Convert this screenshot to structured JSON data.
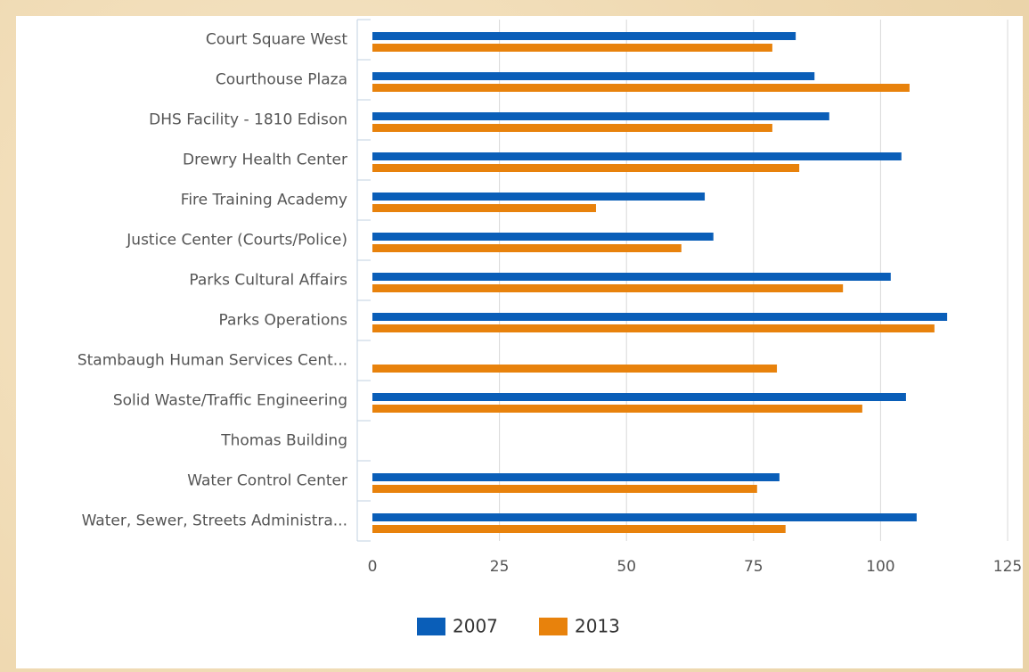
{
  "chart_data": {
    "type": "bar",
    "orientation": "horizontal",
    "categories": [
      "Court Square West",
      "Courthouse Plaza",
      "DHS Facility - 1810 Edison",
      "Drewry Health Center",
      "Fire Training Academy",
      "Justice Center (Courts/Police)",
      "Parks Cultural Affairs",
      "Parks Operations",
      "Stambaugh Human Services Cent...",
      "Solid Waste/Traffic Engineering",
      "Thomas Building",
      "Water Control Center",
      "Water, Sewer, Streets Administra..."
    ],
    "series": [
      {
        "name": "2007",
        "color": "#0a5eb8",
        "values": [
          83.3,
          87.0,
          89.9,
          104.1,
          65.4,
          67.1,
          102.0,
          113.1,
          null,
          105.0,
          null,
          80.1,
          107.1
        ]
      },
      {
        "name": "2013",
        "color": "#e8820c",
        "values": [
          78.7,
          105.7,
          78.7,
          84.0,
          44.0,
          60.8,
          92.6,
          110.6,
          79.6,
          96.4,
          null,
          75.7,
          81.3
        ]
      }
    ],
    "xlim": [
      0,
      125
    ],
    "xticks": [
      0,
      25,
      50,
      75,
      100,
      125
    ],
    "grid": true,
    "legend": "bottom"
  }
}
